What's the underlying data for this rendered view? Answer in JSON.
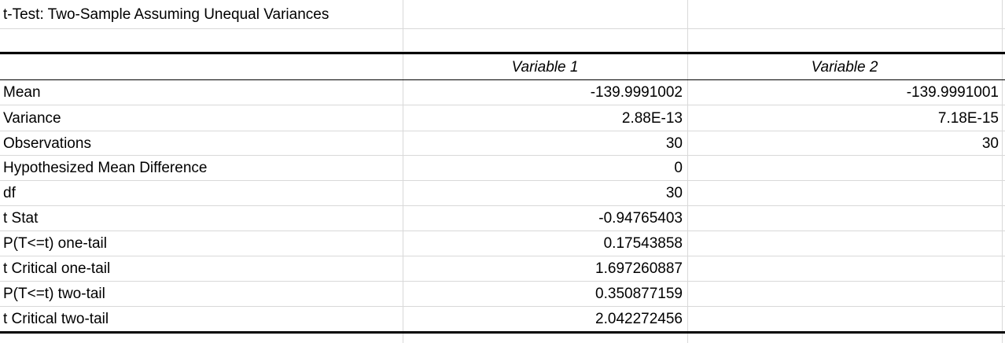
{
  "title": "t-Test: Two-Sample Assuming Unequal Variances",
  "headers": [
    "",
    "Variable 1",
    "Variable 2"
  ],
  "rows": [
    {
      "label": "Mean",
      "v1": "-139.9991002",
      "v2": "-139.9991001"
    },
    {
      "label": "Variance",
      "v1": "2.88E-13",
      "v2": "7.18E-15"
    },
    {
      "label": "Observations",
      "v1": "30",
      "v2": "30"
    },
    {
      "label": "Hypothesized Mean Difference",
      "v1": "0",
      "v2": ""
    },
    {
      "label": "df",
      "v1": "30",
      "v2": ""
    },
    {
      "label": "t Stat",
      "v1": "-0.94765403",
      "v2": ""
    },
    {
      "label": "P(T<=t) one-tail",
      "v1": "0.17543858",
      "v2": ""
    },
    {
      "label": "t Critical one-tail",
      "v1": "1.697260887",
      "v2": ""
    },
    {
      "label": "P(T<=t) two-tail",
      "v1": "0.350877159",
      "v2": ""
    },
    {
      "label": "t Critical two-tail",
      "v1": "2.042272456",
      "v2": ""
    }
  ]
}
